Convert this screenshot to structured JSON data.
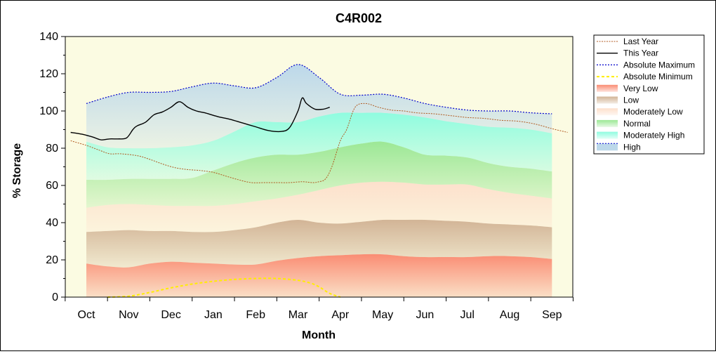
{
  "chart_data": {
    "type": "area",
    "title": "C4R002",
    "xlabel": "Month",
    "ylabel": "% Storage",
    "ylim": [
      0,
      140
    ],
    "yticks": [
      "0",
      "20",
      "40",
      "60",
      "80",
      "100",
      "120",
      "140"
    ],
    "months": [
      "Oct",
      "Nov",
      "Dec",
      "Jan",
      "Feb",
      "Mar",
      "Apr",
      "May",
      "Jun",
      "Jul",
      "Aug",
      "Sep"
    ],
    "legend_position": "right",
    "colors": {
      "plot_bg": "#fbfbe2",
      "very_low": "#fa8c73",
      "low": "#d2b496",
      "moderately_low": "#fde0cc",
      "normal": "#9ce896",
      "moderately_high": "#8ffce0",
      "high": "#bcd8ea",
      "last_year": "#b05a20",
      "this_year": "#000000",
      "abs_max": "#0000cc",
      "abs_min": "#ffee00"
    },
    "bands": {
      "x": [
        0.0,
        0.5,
        1.0,
        1.5,
        2.0,
        2.5,
        3.0,
        3.5,
        4.0,
        4.5,
        5.0,
        5.5,
        6.0,
        6.5,
        7.0,
        7.5,
        8.0,
        8.5,
        9.0,
        9.5,
        10.0,
        10.5,
        11.0
      ],
      "very_low_top": [
        18,
        16.5,
        16,
        18,
        19,
        18.5,
        18,
        17.5,
        17.5,
        19.5,
        21,
        22,
        22.5,
        23,
        23,
        22,
        21.5,
        21.5,
        21.5,
        22,
        22,
        21.5,
        20.5
      ],
      "low_top": [
        35,
        35.5,
        36,
        35.5,
        35.5,
        35,
        35,
        36,
        37.5,
        40,
        41.5,
        40,
        39.5,
        40.5,
        41.5,
        41.5,
        41.5,
        41,
        40.5,
        39.5,
        39,
        38.5,
        37.5
      ],
      "moderately_low_top": [
        48,
        49.5,
        50,
        49.5,
        49,
        49,
        49,
        50,
        51.5,
        53,
        55,
        57.5,
        60,
        61.5,
        62,
        61.5,
        60.5,
        60.5,
        60.5,
        58,
        56,
        54.5,
        53
      ],
      "normal_top": [
        63,
        63,
        63.5,
        63.5,
        63.5,
        64,
        68,
        72,
        75,
        76.5,
        76.5,
        78,
        80.5,
        82.5,
        83.5,
        80.5,
        76.5,
        76,
        75,
        72,
        70,
        69,
        67.5
      ],
      "moderately_high_top": [
        83.5,
        80.5,
        80,
        80,
        80.5,
        81.5,
        84,
        89,
        94,
        94,
        94,
        97,
        99,
        99,
        99,
        98,
        96.5,
        94.5,
        93,
        91.5,
        91,
        90,
        88
      ],
      "absolute_maximum": [
        104,
        107.5,
        110,
        110,
        110.5,
        113,
        115,
        113.5,
        112.5,
        118,
        125,
        118,
        109,
        108.5,
        109,
        107,
        104,
        102,
        100.5,
        100,
        100,
        99,
        98.5
      ]
    },
    "series": [
      {
        "name": "Last Year",
        "x": [
          -0.37,
          0,
          0.3,
          0.55,
          0.8,
          1.2,
          1.5,
          1.8,
          2.1,
          2.4,
          2.7,
          3.0,
          3.3,
          3.6,
          3.9,
          4.2,
          4.5,
          4.8,
          5.1,
          5.35,
          5.5,
          5.65,
          5.8,
          6.0,
          6.15,
          6.35,
          6.6,
          6.9,
          7.2,
          7.5,
          7.8,
          8.2,
          8.6,
          9.0,
          9.4,
          9.8,
          10.2,
          10.6,
          11.0,
          11.37
        ],
        "y": [
          84,
          81.5,
          79,
          77,
          77,
          76,
          74,
          71.5,
          69.5,
          68.5,
          68,
          67,
          65,
          63,
          61.5,
          61.5,
          61.5,
          61.5,
          62,
          61.5,
          62,
          63.5,
          70,
          84,
          90,
          102,
          104,
          102,
          100.5,
          100,
          99,
          98.5,
          97.5,
          96.5,
          96,
          95,
          94.5,
          93,
          90.5,
          88.5
        ]
      },
      {
        "name": "This Year",
        "x": [
          -0.37,
          -0.1,
          0.15,
          0.35,
          0.55,
          0.75,
          0.95,
          1.1,
          1.2,
          1.4,
          1.6,
          1.8,
          2.0,
          2.2,
          2.4,
          2.6,
          2.8,
          3.1,
          3.4,
          3.7,
          4.0,
          4.3,
          4.6,
          4.8,
          5.0,
          5.1,
          5.2,
          5.4,
          5.6,
          5.75
        ],
        "y": [
          88.5,
          87.5,
          86,
          84.5,
          85,
          85,
          85.5,
          90,
          92,
          94,
          98,
          99.5,
          102,
          105,
          102,
          100,
          99,
          97,
          95.5,
          93.5,
          91.5,
          89.5,
          89,
          91,
          100,
          107,
          104,
          101,
          101,
          102
        ]
      },
      {
        "name": "Absolute Maximum",
        "x": [
          0.0,
          0.5,
          1.0,
          1.5,
          2.0,
          2.5,
          3.0,
          3.5,
          4.0,
          4.5,
          5.0,
          5.5,
          6.0,
          6.5,
          7.0,
          7.5,
          8.0,
          8.5,
          9.0,
          9.5,
          10.0,
          10.5,
          11.0
        ],
        "y": [
          104,
          107.5,
          110,
          110,
          110.5,
          113,
          115,
          113.5,
          112.5,
          118,
          125,
          118,
          109,
          108.5,
          109,
          107,
          104,
          102,
          100.5,
          100,
          100,
          99,
          98.5
        ]
      },
      {
        "name": "Absolute Minimum",
        "x": [
          0.5,
          1.0,
          1.5,
          2.0,
          2.5,
          3.0,
          3.5,
          4.0,
          4.5,
          5.0,
          5.3,
          5.5,
          5.75,
          6.0
        ],
        "y": [
          0,
          0.5,
          2.5,
          5,
          7,
          8.5,
          9.5,
          10,
          10,
          9,
          7.5,
          5.5,
          2,
          0
        ]
      }
    ],
    "legend": [
      "Last Year",
      "This Year",
      "Absolute Maximum",
      "Absolute Minimum",
      "Very Low",
      "Low",
      "Moderately Low",
      "Normal",
      "Moderately High",
      "High"
    ]
  }
}
